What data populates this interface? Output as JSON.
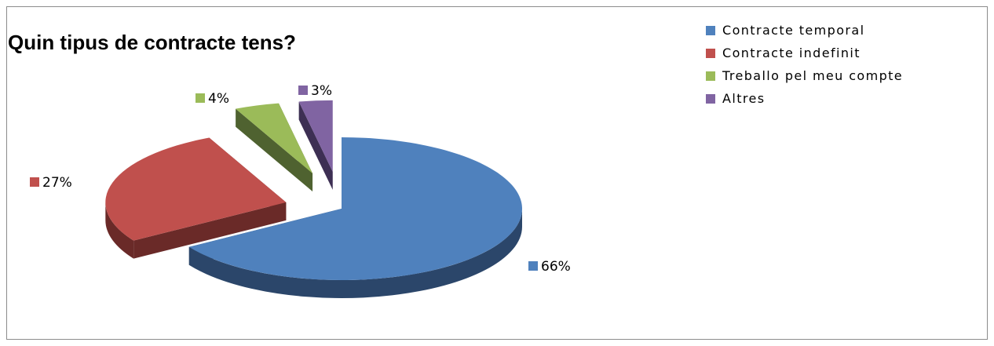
{
  "chart_data": {
    "type": "pie",
    "subtype": "3d-exploded",
    "title": "Quin tipus de contracte tens?",
    "categories": [
      "Contracte temporal",
      "Contracte indefinit",
      "Treballo pel meu compte",
      "Altres"
    ],
    "values": [
      66,
      27,
      4,
      3
    ],
    "data_labels": [
      "66%",
      "27%",
      "4%",
      "3%"
    ],
    "colors": [
      "#4F81BD",
      "#C0504D",
      "#9BBB59",
      "#8064A2"
    ],
    "side_colors": [
      "#2B466A",
      "#6A2A28",
      "#4F6230",
      "#3D2F53"
    ],
    "legend": {
      "position": "top-right"
    }
  }
}
